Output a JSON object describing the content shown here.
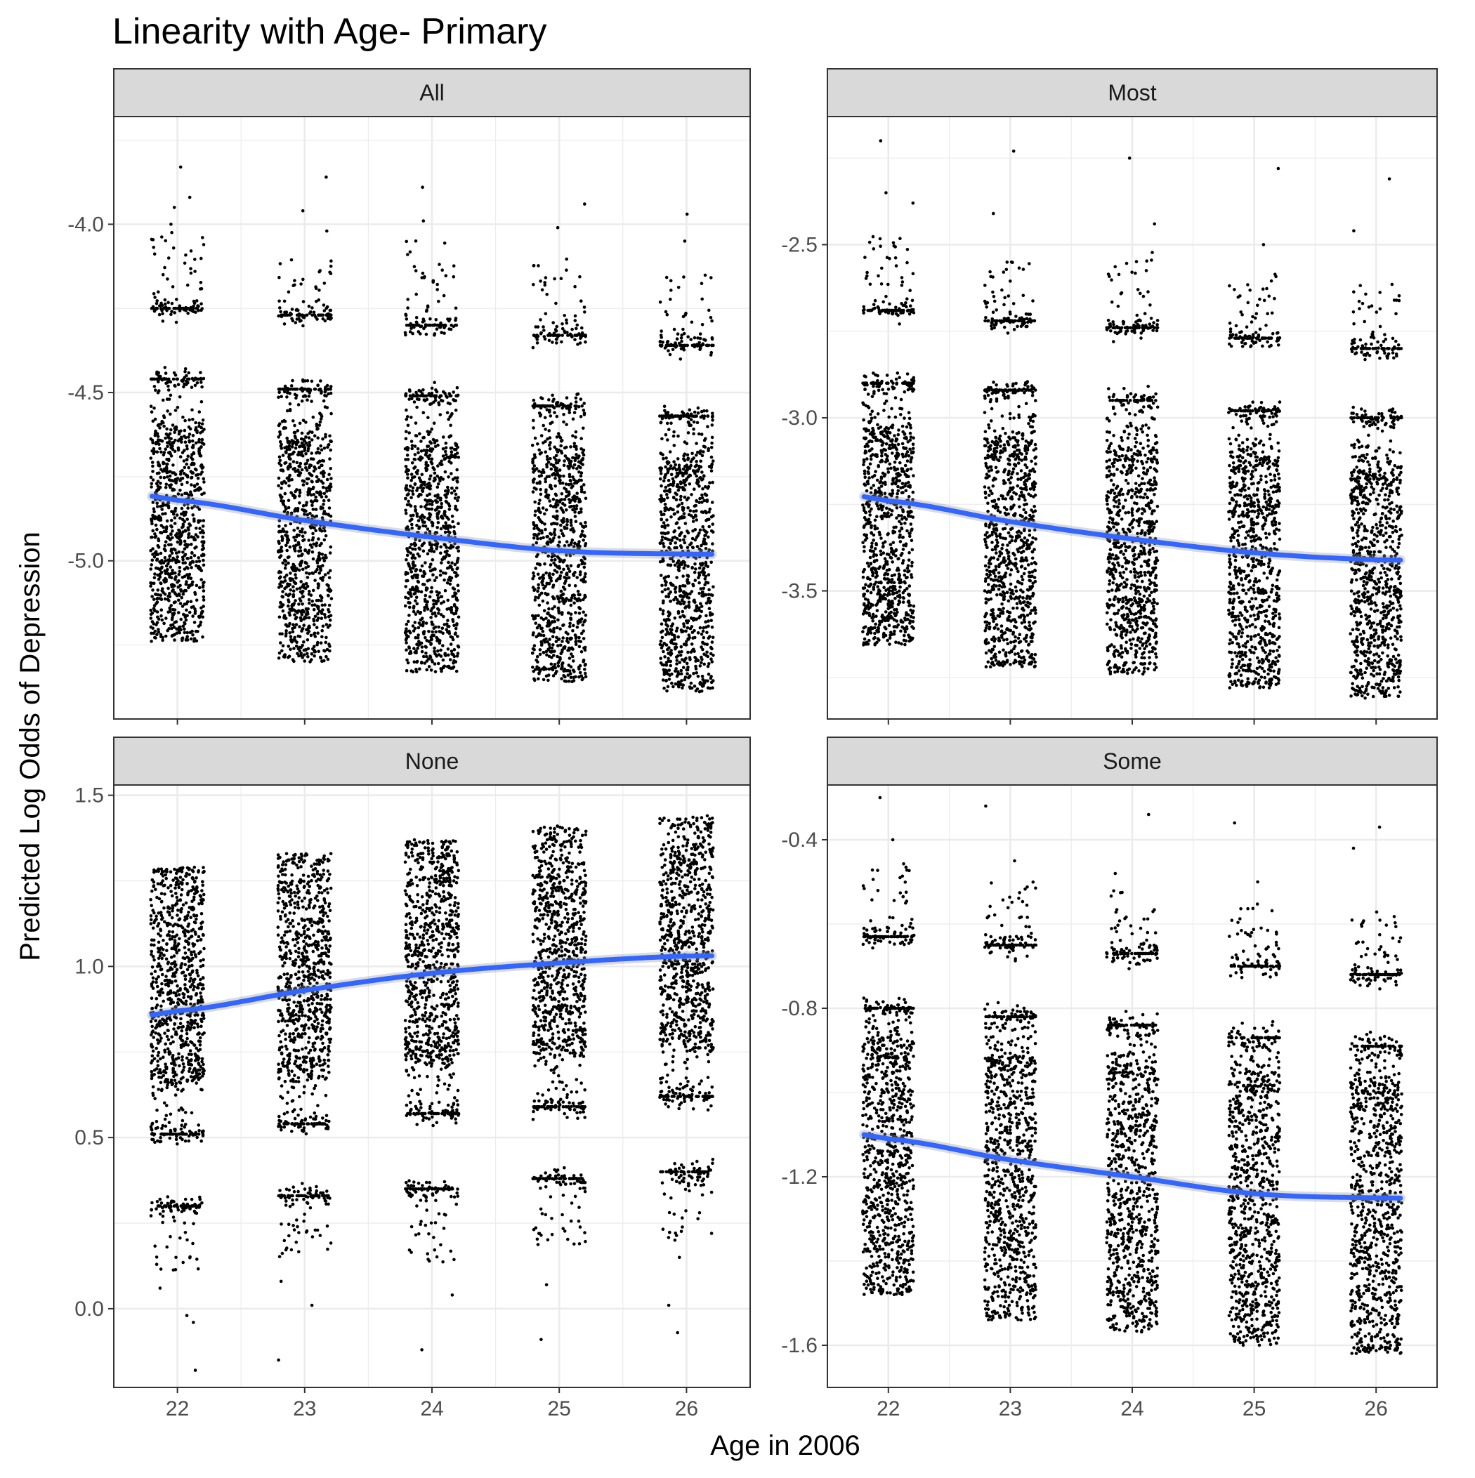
{
  "chart_data": {
    "type": "scatter",
    "title": "Linearity with Age- Primary",
    "xlabel": "Age in 2006",
    "ylabel": "Predicted Log Odds of Depression",
    "x_ticks": [
      22,
      23,
      24,
      25,
      26
    ],
    "grid": true,
    "legend": "none",
    "colors": {
      "points": "#000000",
      "smooth": "#3366ff",
      "strip_fill": "#d9d9d9",
      "grid": "#ebebeb"
    },
    "facets": [
      {
        "strip": "All",
        "xlim": [
          21.5,
          26.5
        ],
        "ylim": [
          -5.47,
          -3.68
        ],
        "y_ticks": [
          "-4.0",
          "-4.5",
          "-5.0"
        ],
        "y_tick_values": [
          -4.0,
          -4.5,
          -5.0
        ],
        "clusters": [
          {
            "x": 22,
            "main_top": -4.65,
            "main_bottom": -5.24,
            "bands": [
              -4.25,
              -4.46
            ],
            "scatter_top": -4.02,
            "outliers": [
              -3.83,
              -3.92,
              -3.95,
              -4.0
            ]
          },
          {
            "x": 23,
            "main_top": -4.67,
            "main_bottom": -5.3,
            "bands": [
              -4.27,
              -4.49
            ],
            "scatter_top": -4.1,
            "outliers": [
              -3.86,
              -3.96,
              -4.02
            ]
          },
          {
            "x": 24,
            "main_top": -4.7,
            "main_bottom": -5.33,
            "bands": [
              -4.3,
              -4.51
            ],
            "scatter_top": -4.04,
            "outliers": [
              -3.89,
              -3.99
            ]
          },
          {
            "x": 25,
            "main_top": -4.72,
            "main_bottom": -5.36,
            "bands": [
              -4.33,
              -4.54
            ],
            "scatter_top": -4.1,
            "outliers": [
              -3.94,
              -4.01
            ]
          },
          {
            "x": 26,
            "main_top": -4.74,
            "main_bottom": -5.39,
            "bands": [
              -4.36,
              -4.57
            ],
            "scatter_top": -4.14,
            "outliers": [
              -3.97,
              -4.05
            ]
          }
        ],
        "smooth": {
          "x": [
            22,
            23,
            24,
            25,
            26
          ],
          "y": [
            -4.82,
            -4.88,
            -4.93,
            -4.97,
            -4.98
          ]
        }
      },
      {
        "strip": "Most",
        "xlim": [
          21.5,
          26.5
        ],
        "ylim": [
          -3.87,
          -2.13
        ],
        "y_ticks": [
          "-2.5",
          "-3.0",
          "-3.5"
        ],
        "y_tick_values": [
          -2.5,
          -3.0,
          -3.5
        ],
        "clusters": [
          {
            "x": 22,
            "main_top": -3.07,
            "main_bottom": -3.66,
            "bands": [
              -2.69,
              -2.9
            ],
            "scatter_top": -2.47,
            "outliers": [
              -2.2,
              -2.35,
              -2.38
            ]
          },
          {
            "x": 23,
            "main_top": -3.1,
            "main_bottom": -3.72,
            "bands": [
              -2.72,
              -2.92
            ],
            "scatter_top": -2.55,
            "outliers": [
              -2.23,
              -2.41
            ]
          },
          {
            "x": 24,
            "main_top": -3.13,
            "main_bottom": -3.74,
            "bands": [
              -2.74,
              -2.95
            ],
            "scatter_top": -2.52,
            "outliers": [
              -2.25,
              -2.44
            ]
          },
          {
            "x": 25,
            "main_top": -3.15,
            "main_bottom": -3.78,
            "bands": [
              -2.77,
              -2.98
            ],
            "scatter_top": -2.58,
            "outliers": [
              -2.28,
              -2.5
            ]
          },
          {
            "x": 26,
            "main_top": -3.18,
            "main_bottom": -3.81,
            "bands": [
              -2.8,
              -3.0
            ],
            "scatter_top": -2.6,
            "outliers": [
              -2.31,
              -2.46
            ]
          }
        ],
        "smooth": {
          "x": [
            22,
            23,
            24,
            25,
            26
          ],
          "y": [
            -3.24,
            -3.3,
            -3.35,
            -3.39,
            -3.41
          ]
        }
      },
      {
        "strip": "None",
        "xlim": [
          21.5,
          26.5
        ],
        "ylim": [
          -0.23,
          1.53
        ],
        "y_ticks": [
          "1.5",
          "1.0",
          "0.5",
          "0.0"
        ],
        "y_tick_values": [
          1.5,
          1.0,
          0.5,
          0.0
        ],
        "clusters": [
          {
            "x": 22,
            "main_top": 1.29,
            "main_bottom": 0.7,
            "bands": [
              0.51,
              0.3
            ],
            "scatter_bottom": 0.1,
            "outliers": [
              0.06,
              -0.02,
              -0.04,
              -0.18
            ]
          },
          {
            "x": 23,
            "main_top": 1.33,
            "main_bottom": 0.73,
            "bands": [
              0.54,
              0.33
            ],
            "scatter_bottom": 0.15,
            "outliers": [
              0.08,
              0.01,
              -0.15
            ]
          },
          {
            "x": 24,
            "main_top": 1.37,
            "main_bottom": 0.76,
            "bands": [
              0.57,
              0.35
            ],
            "scatter_bottom": 0.13,
            "outliers": [
              0.04,
              -0.12
            ]
          },
          {
            "x": 25,
            "main_top": 1.41,
            "main_bottom": 0.79,
            "bands": [
              0.59,
              0.38
            ],
            "scatter_bottom": 0.16,
            "outliers": [
              0.07,
              -0.09
            ]
          },
          {
            "x": 26,
            "main_top": 1.44,
            "main_bottom": 0.81,
            "bands": [
              0.62,
              0.4
            ],
            "scatter_bottom": 0.2,
            "outliers": [
              0.15,
              0.01,
              -0.07
            ]
          }
        ],
        "smooth": {
          "x": [
            22,
            23,
            24,
            25,
            26
          ],
          "y": [
            0.87,
            0.93,
            0.98,
            1.01,
            1.03
          ]
        }
      },
      {
        "strip": "Some",
        "xlim": [
          21.5,
          26.5
        ],
        "ylim": [
          -1.7,
          -0.27
        ],
        "y_ticks": [
          "-0.4",
          "-0.8",
          "-1.2",
          "-1.6"
        ],
        "y_tick_values": [
          -0.4,
          -0.8,
          -1.2,
          -1.6
        ],
        "clusters": [
          {
            "x": 22,
            "main_top": -0.92,
            "main_bottom": -1.48,
            "bands": [
              -0.63,
              -0.8
            ],
            "scatter_top": -0.45,
            "outliers": [
              -0.3,
              -0.4
            ]
          },
          {
            "x": 23,
            "main_top": -0.95,
            "main_bottom": -1.54,
            "bands": [
              -0.65,
              -0.82
            ],
            "scatter_top": -0.5,
            "outliers": [
              -0.32,
              -0.45
            ]
          },
          {
            "x": 24,
            "main_top": -0.97,
            "main_bottom": -1.57,
            "bands": [
              -0.67,
              -0.84
            ],
            "scatter_top": -0.52,
            "outliers": [
              -0.34,
              -0.48
            ]
          },
          {
            "x": 25,
            "main_top": -1.0,
            "main_bottom": -1.6,
            "bands": [
              -0.7,
              -0.87
            ],
            "scatter_top": -0.55,
            "outliers": [
              -0.36,
              -0.5
            ]
          },
          {
            "x": 26,
            "main_top": -1.02,
            "main_bottom": -1.62,
            "bands": [
              -0.72,
              -0.89
            ],
            "scatter_top": -0.57,
            "outliers": [
              -0.37,
              -0.42
            ]
          }
        ],
        "smooth": {
          "x": [
            22,
            23,
            24,
            25,
            26
          ],
          "y": [
            -1.11,
            -1.16,
            -1.2,
            -1.24,
            -1.25
          ]
        }
      }
    ]
  }
}
